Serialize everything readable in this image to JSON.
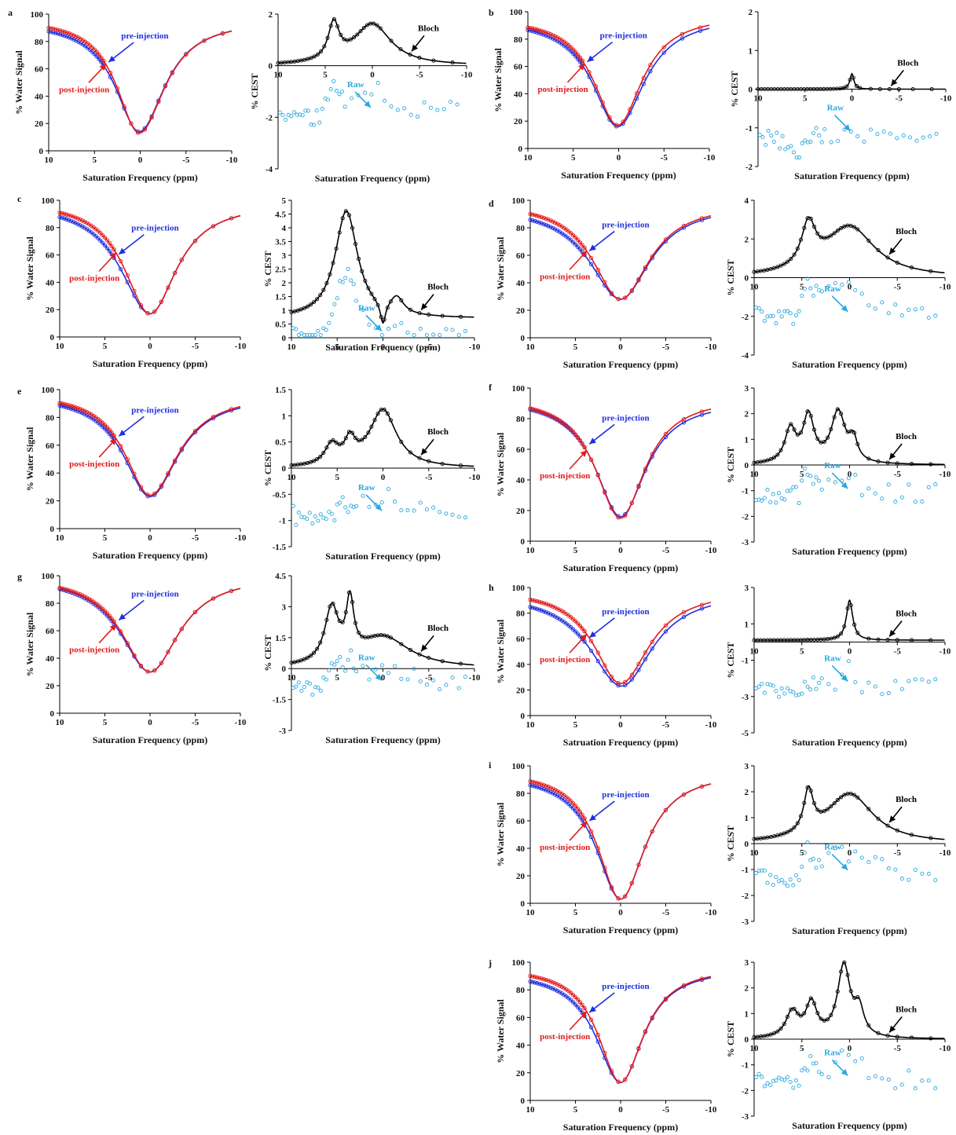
{
  "figure": {
    "background": "#ffffff",
    "colors": {
      "pre": "#1f2fe0",
      "post": "#e31a1c",
      "bloch": "#000000",
      "raw": "#29a8e0"
    }
  },
  "chart_data": [
    {
      "panel": "a",
      "type": "line",
      "xlabel": "Saturation Frequency (ppm)",
      "ylabel": "% Water Signal",
      "xlim": [
        10,
        -10
      ],
      "ylim": [
        0,
        100
      ],
      "xticks": [
        "10",
        "5",
        "0",
        "-5",
        "-10"
      ],
      "yticks": [
        "0",
        "20",
        "40",
        "60",
        "80",
        "100"
      ],
      "series": [
        {
          "name": "pre-injection"
        },
        {
          "name": "post-injection"
        }
      ],
      "params": {
        "pre": {
          "min": 14,
          "center": 0.1,
          "wl": 3.2,
          "wr": 3.4,
          "end": 95,
          "endR": 96
        },
        "post": {
          "min": 13,
          "center": 0.1,
          "wl": 3.0,
          "wr": 3.4,
          "end": 97,
          "endR": 96
        }
      },
      "labels": {
        "pre": "pre-injection",
        "post": "post-injection"
      }
    },
    {
      "panel": "a2",
      "type": "line",
      "xlabel": "Saturation Frequency (ppm)",
      "ylabel": "% CEST",
      "xlim": [
        10,
        -10
      ],
      "ylim": [
        -4,
        2
      ],
      "xticks": [
        "10",
        "5",
        "0",
        "-5",
        "-10"
      ],
      "yticks": [
        "-4",
        "-2",
        "0",
        "2"
      ],
      "series": [
        {
          "name": "Bloch"
        },
        {
          "name": "Raw"
        }
      ],
      "peaks": [
        [
          1.4,
          4.1,
          0.7
        ],
        [
          1.6,
          0,
          2.4
        ]
      ],
      "rawOffset": -1.8,
      "rawScale": 0.9,
      "labels": {
        "bloch": "Bloch",
        "raw": "Raw"
      }
    },
    {
      "panel": "b",
      "type": "line",
      "xlabel": "Saturation Frequency (ppm)",
      "ylabel": "% Water Signal",
      "xlim": [
        10,
        -10
      ],
      "ylim": [
        0,
        100
      ],
      "xticks": [
        "10",
        "5",
        "0",
        "-5",
        "-10"
      ],
      "yticks": [
        "0",
        "20",
        "40",
        "60",
        "80",
        "100"
      ],
      "series": [
        {
          "name": "pre-injection"
        },
        {
          "name": "post-injection"
        }
      ],
      "params": {
        "pre": {
          "min": 16,
          "center": 0.1,
          "wl": 3.4,
          "wr": 3.6,
          "end": 95,
          "endR": 97
        },
        "post": {
          "min": 17,
          "center": 0.1,
          "wl": 3.2,
          "wr": 3.3,
          "end": 96,
          "endR": 98
        }
      },
      "labels": {
        "pre": "pre-injection",
        "post": "post-injection"
      }
    },
    {
      "panel": "b2",
      "type": "line",
      "xlabel": "Saturation Frequency (ppm)",
      "ylabel": "% CEST",
      "xlim": [
        10,
        -10
      ],
      "ylim": [
        -2,
        2
      ],
      "xticks": [
        "10",
        "5",
        "0",
        "-5",
        "-10"
      ],
      "yticks": [
        "-2",
        "-1",
        "0",
        "1",
        "2"
      ],
      "series": [
        {
          "name": "Bloch"
        },
        {
          "name": "Raw"
        }
      ],
      "peaks": [
        [
          0.4,
          0,
          0.25
        ]
      ],
      "rawOffset": -1.2,
      "rawScale": 0.8,
      "labels": {
        "bloch": "Bloch",
        "raw": "Raw"
      }
    },
    {
      "panel": "c",
      "type": "line",
      "xlabel": "Saturation Frequency (ppm)",
      "ylabel": "% Water Signal",
      "xlim": [
        10,
        -10
      ],
      "ylim": [
        0,
        100
      ],
      "xticks": [
        "10",
        "5",
        "0",
        "-5",
        "-10"
      ],
      "yticks": [
        "0",
        "20",
        "40",
        "60",
        "80",
        "100"
      ],
      "series": [
        {
          "name": "pre-injection"
        },
        {
          "name": "post-injection"
        }
      ],
      "params": {
        "pre": {
          "min": 17,
          "center": 0,
          "wl": 4.0,
          "wr": 3.6,
          "end": 99,
          "endR": 98
        },
        "post": {
          "min": 17,
          "center": 0,
          "wl": 3.5,
          "wr": 3.6,
          "end": 100,
          "endR": 98
        }
      },
      "labels": {
        "pre": "pre-injection",
        "post": "post-injection"
      }
    },
    {
      "panel": "c2",
      "type": "line",
      "xlabel": "Saturation Frequency (ppm)",
      "ylabel": "% CEST",
      "xlim": [
        10,
        -10
      ],
      "ylim": [
        0,
        5
      ],
      "xticks": [
        "10",
        "5",
        "0",
        "-5",
        "-10"
      ],
      "yticks": [
        "0",
        "0.5",
        "1",
        "1.5",
        "2",
        "2.5",
        "3",
        "3.5",
        "4",
        "4.5",
        "5"
      ],
      "series": [
        {
          "name": "Bloch"
        },
        {
          "name": "Raw"
        }
      ],
      "peaks": [
        [
          3.9,
          4,
          1.5
        ],
        [
          -0.8,
          0,
          0.35
        ],
        [
          0.6,
          -1.5,
          0.9
        ]
      ],
      "baseline": 0.7,
      "rawOffset": 0.1,
      "rawScale": 1,
      "labels": {
        "bloch": "Bloch",
        "raw": "Raw"
      }
    },
    {
      "panel": "d",
      "type": "line",
      "xlabel": "Saturation Frequency (ppm)",
      "ylabel": "% Water Signal",
      "xlim": [
        10,
        -10
      ],
      "ylim": [
        0,
        100
      ],
      "xticks": [
        "10",
        "5",
        "0",
        "-5",
        "-10"
      ],
      "yticks": [
        "0",
        "20",
        "40",
        "60",
        "80",
        "100"
      ],
      "series": [
        {
          "name": "pre-injection"
        },
        {
          "name": "post-injection"
        }
      ],
      "params": {
        "pre": {
          "min": 28,
          "center": 0,
          "wl": 4.2,
          "wr": 4.0,
          "end": 96,
          "endR": 97
        },
        "post": {
          "min": 28,
          "center": 0,
          "wl": 3.8,
          "wr": 3.9,
          "end": 99,
          "endR": 98
        }
      },
      "labels": {
        "pre": "pre-injection",
        "post": "post-injection"
      }
    },
    {
      "panel": "d2",
      "type": "line",
      "xlabel": "Saturation Frequency (ppm)",
      "ylabel": "% CEST",
      "xlim": [
        10,
        -10
      ],
      "ylim": [
        -4,
        4
      ],
      "xticks": [
        "10",
        "5",
        "0",
        "-5",
        "-10"
      ],
      "yticks": [
        "-4",
        "-2",
        "0",
        "2",
        "4"
      ],
      "series": [
        {
          "name": "Bloch"
        },
        {
          "name": "Raw"
        }
      ],
      "peaks": [
        [
          2.2,
          4.3,
          0.9
        ],
        [
          2.6,
          0,
          3.2
        ]
      ],
      "rawOffset": -2.0,
      "rawScale": 0.9,
      "labels": {
        "bloch": "Bloch",
        "raw": "Raw"
      }
    },
    {
      "panel": "e",
      "type": "line",
      "xlabel": "Saturation Frequency (ppm)",
      "ylabel": "% Water Signal",
      "xlim": [
        10,
        -10
      ],
      "ylim": [
        0,
        100
      ],
      "xticks": [
        "10",
        "5",
        "0",
        "-5",
        "-10"
      ],
      "yticks": [
        "0",
        "20",
        "40",
        "60",
        "80",
        "100"
      ],
      "series": [
        {
          "name": "pre-injection"
        },
        {
          "name": "post-injection"
        }
      ],
      "params": {
        "pre": {
          "min": 23,
          "center": 0,
          "wl": 3.6,
          "wr": 3.8,
          "end": 97,
          "endR": 96
        },
        "post": {
          "min": 24,
          "center": 0,
          "wl": 3.4,
          "wr": 3.8,
          "end": 98,
          "endR": 97
        }
      },
      "labels": {
        "pre": "pre-injection",
        "post": "post-injection"
      }
    },
    {
      "panel": "e2",
      "type": "line",
      "xlabel": "Saturation Frequency (ppm)",
      "ylabel": "% CEST",
      "xlim": [
        10,
        -10
      ],
      "ylim": [
        -1.5,
        1.5
      ],
      "xticks": [
        "10",
        "5",
        "0",
        "-5",
        "-10"
      ],
      "yticks": [
        "-1.5",
        "-1",
        "-0.5",
        "0",
        "0.5",
        "1",
        "1.5"
      ],
      "series": [
        {
          "name": "Bloch"
        },
        {
          "name": "Raw"
        }
      ],
      "peaks": [
        [
          0.38,
          5.6,
          0.9
        ],
        [
          0.42,
          3.6,
          0.7
        ],
        [
          1.1,
          0,
          1.8
        ]
      ],
      "rawOffset": -0.9,
      "rawScale": 0.6,
      "labels": {
        "bloch": "Bloch",
        "raw": "Raw"
      }
    },
    {
      "panel": "f",
      "type": "line",
      "xlabel": "Saturation Frequency (ppm)",
      "ylabel": "% Water Signal",
      "xlim": [
        10,
        -10
      ],
      "ylim": [
        0,
        100
      ],
      "xticks": [
        "10",
        "5",
        "0",
        "-5",
        "-10"
      ],
      "yticks": [
        "0",
        "20",
        "40",
        "60",
        "80",
        "100"
      ],
      "series": [
        {
          "name": "pre-injection"
        },
        {
          "name": "post-injection"
        }
      ],
      "params": {
        "pre": {
          "min": 16,
          "center": 0,
          "wl": 3.4,
          "wr": 3.4,
          "end": 94,
          "endR": 92
        },
        "post": {
          "min": 15,
          "center": 0,
          "wl": 3.4,
          "wr": 3.3,
          "end": 95,
          "endR": 94
        }
      },
      "labels": {
        "pre": "pre-injection",
        "post": "post-injection"
      }
    },
    {
      "panel": "f2",
      "type": "line",
      "xlabel": "Saturation Frequency (ppm)",
      "ylabel": "% CEST",
      "xlim": [
        10,
        -10
      ],
      "ylim": [
        -3,
        3
      ],
      "xticks": [
        "10",
        "5",
        "0",
        "-5",
        "-10"
      ],
      "yticks": [
        "-3",
        "-2",
        "-1",
        "0",
        "1",
        "2",
        "3"
      ],
      "series": [
        {
          "name": "Bloch"
        },
        {
          "name": "Raw"
        }
      ],
      "peaks": [
        [
          1.3,
          6.2,
          0.7
        ],
        [
          1.8,
          4.3,
          0.7
        ],
        [
          2.0,
          1.2,
          0.9
        ],
        [
          0.8,
          -0.4,
          0.5
        ]
      ],
      "rawOffset": -1.1,
      "rawScale": 0.6,
      "labels": {
        "bloch": "Bloch",
        "raw": "Raw"
      }
    },
    {
      "panel": "g",
      "type": "line",
      "xlabel": "Saturation Frequency (ppm)",
      "ylabel": "% Water Signal",
      "xlim": [
        10,
        -10
      ],
      "ylim": [
        0,
        100
      ],
      "xticks": [
        "10",
        "5",
        "0",
        "-5",
        "-10"
      ],
      "yticks": [
        "0",
        "20",
        "40",
        "60",
        "80",
        "100"
      ],
      "series": [
        {
          "name": "pre-injection"
        },
        {
          "name": "post-injection"
        }
      ],
      "params": {
        "pre": {
          "min": 30,
          "center": 0,
          "wl": 4.0,
          "wr": 3.9,
          "end": 100,
          "endR": 100
        },
        "post": {
          "min": 30,
          "center": 0,
          "wl": 3.8,
          "wr": 3.9,
          "end": 100,
          "endR": 100
        }
      },
      "labels": {
        "pre": "pre-injection",
        "post": "post-injection"
      }
    },
    {
      "panel": "g2",
      "type": "line",
      "xlabel": "Saturation Frequency (ppm)",
      "ylabel": "% CEST",
      "xlim": [
        10,
        -10
      ],
      "ylim": [
        -3,
        4.5
      ],
      "xticks": [
        "10",
        "5",
        "0",
        "-5",
        "-10"
      ],
      "yticks": [
        "-3",
        "-1.5",
        "0",
        "1.5",
        "3",
        "4.5"
      ],
      "series": [
        {
          "name": "Bloch"
        },
        {
          "name": "Raw"
        }
      ],
      "peaks": [
        [
          2.6,
          5.6,
          0.9
        ],
        [
          2.6,
          3.6,
          0.5
        ],
        [
          1.5,
          0,
          3.5
        ]
      ],
      "rawOffset": -0.8,
      "rawScale": 0.7,
      "labels": {
        "bloch": "Bloch",
        "raw": "Raw"
      }
    },
    {
      "panel": "h",
      "type": "line",
      "xlabel": "Satruation Frequency (ppm)",
      "ylabel": "% Water Signal",
      "xlim": [
        10,
        -10
      ],
      "ylim": [
        0,
        100
      ],
      "xticks": [
        "10",
        "5",
        "0",
        "-5",
        "-10"
      ],
      "yticks": [
        "0",
        "20",
        "40",
        "60",
        "80",
        "100"
      ],
      "series": [
        {
          "name": "pre-injection"
        },
        {
          "name": "post-injection"
        }
      ],
      "params": {
        "pre": {
          "min": 23,
          "center": -0.1,
          "wl": 4.3,
          "wr": 4.2,
          "end": 96,
          "endR": 97
        },
        "post": {
          "min": 25,
          "center": 0,
          "wl": 3.6,
          "wr": 3.9,
          "end": 99,
          "endR": 98
        }
      },
      "labels": {
        "pre": "pre-injection",
        "post": "post-injection"
      }
    },
    {
      "panel": "h2",
      "type": "line",
      "xlabel": "Saturation Frequency (ppm)",
      "ylabel": "% CEST",
      "xlim": [
        10,
        -10
      ],
      "ylim": [
        -5,
        3
      ],
      "xticks": [
        "10",
        "5",
        "0",
        "-5",
        "-10"
      ],
      "yticks": [
        "-5",
        "-3",
        "-1",
        "1",
        "3"
      ],
      "series": [
        {
          "name": "Bloch"
        },
        {
          "name": "Raw"
        }
      ],
      "peaks": [
        [
          2.2,
          0,
          0.4
        ]
      ],
      "baseline": 0.1,
      "rawOffset": -2.4,
      "rawScale": 0.7,
      "labels": {
        "bloch": "Bloch",
        "raw": "Raw"
      }
    },
    {
      "panel": "i",
      "type": "line",
      "xlabel": "Saturation Frequency (ppm)",
      "ylabel": "% Water Signal",
      "xlim": [
        10,
        -10
      ],
      "ylim": [
        0,
        100
      ],
      "xticks": [
        "10",
        "5",
        "0",
        "-5",
        "-10"
      ],
      "yticks": [
        "0",
        "20",
        "40",
        "60",
        "80",
        "100"
      ],
      "series": [
        {
          "name": "pre-injection"
        },
        {
          "name": "post-injection"
        }
      ],
      "params": {
        "pre": {
          "min": 3,
          "center": 0,
          "wl": 3.3,
          "wr": 3.3,
          "end": 95,
          "endR": 96
        },
        "post": {
          "min": 3,
          "center": 0,
          "wl": 3.1,
          "wr": 3.3,
          "end": 97,
          "endR": 96
        }
      },
      "labels": {
        "pre": "pre-injection",
        "post": "post-injection"
      }
    },
    {
      "panel": "i2",
      "type": "line",
      "xlabel": "Saturation Frequency (ppm)",
      "ylabel": "% CEST",
      "xlim": [
        10,
        -10
      ],
      "ylim": [
        -3,
        3
      ],
      "xticks": [
        "10",
        "5",
        "0",
        "-5",
        "-10"
      ],
      "yticks": [
        "-3",
        "-2",
        "-1",
        "0",
        "1",
        "2",
        "3"
      ],
      "series": [
        {
          "name": "Bloch"
        },
        {
          "name": "Raw"
        }
      ],
      "peaks": [
        [
          1.6,
          4.3,
          0.6
        ],
        [
          1.9,
          0,
          3.0
        ]
      ],
      "rawOffset": -1.2,
      "rawScale": 0.7,
      "labels": {
        "bloch": "Bloch",
        "raw": "Raw"
      }
    },
    {
      "panel": "j",
      "type": "line",
      "xlabel": "Saturation Frequency (ppm)",
      "ylabel": "% Water Signal",
      "xlim": [
        10,
        -10
      ],
      "ylim": [
        0,
        100
      ],
      "xticks": [
        "10",
        "5",
        "0",
        "-5",
        "-10"
      ],
      "yticks": [
        "0",
        "20",
        "40",
        "60",
        "80",
        "100"
      ],
      "series": [
        {
          "name": "pre-injection"
        },
        {
          "name": "post-injection"
        }
      ],
      "params": {
        "pre": {
          "min": 13,
          "center": 0,
          "wl": 3.3,
          "wr": 3.1,
          "end": 94,
          "endR": 96
        },
        "post": {
          "min": 13,
          "center": 0,
          "wl": 3.0,
          "wr": 3.1,
          "end": 97,
          "endR": 97
        }
      },
      "labels": {
        "pre": "pre-injection",
        "post": "post-injection"
      }
    },
    {
      "panel": "j2",
      "type": "line",
      "xlabel": "Saturation Frequency (ppm)",
      "ylabel": "% CEST",
      "xlim": [
        10,
        -10
      ],
      "ylim": [
        -3,
        3
      ],
      "xticks": [
        "10",
        "5",
        "0",
        "-5",
        "-10"
      ],
      "yticks": [
        "-3",
        "-2",
        "-1",
        "0",
        "1",
        "2",
        "3"
      ],
      "series": [
        {
          "name": "Bloch"
        },
        {
          "name": "Raw"
        }
      ],
      "peaks": [
        [
          1.0,
          6.0,
          0.8
        ],
        [
          1.3,
          4.0,
          0.7
        ],
        [
          2.8,
          0.6,
          0.8
        ],
        [
          1.0,
          -1.0,
          0.6
        ]
      ],
      "rawOffset": -1.6,
      "rawScale": 0.7,
      "labels": {
        "bloch": "Bloch",
        "raw": "Raw"
      }
    }
  ]
}
